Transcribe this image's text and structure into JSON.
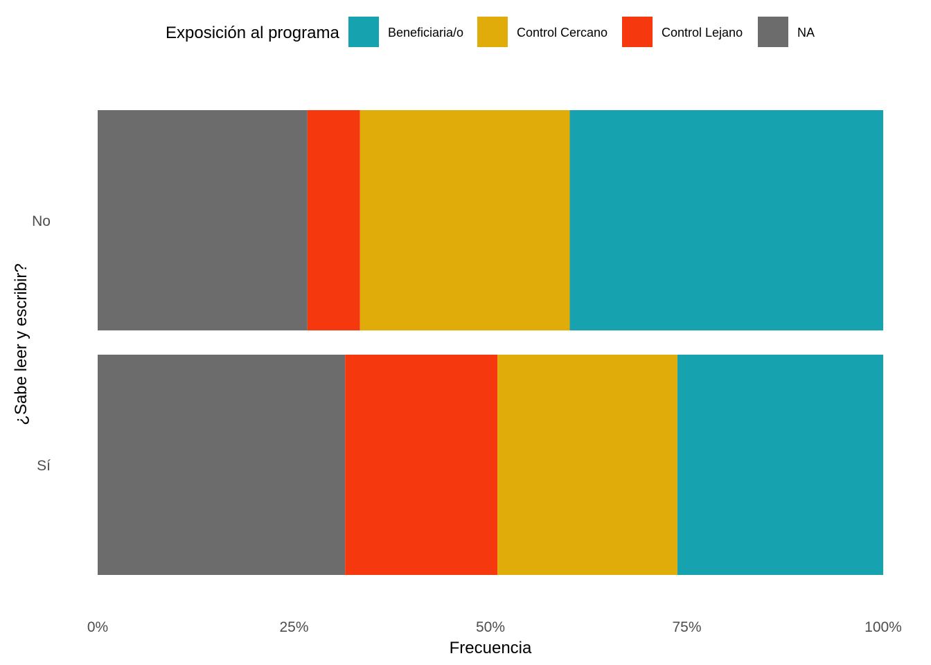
{
  "legend": {
    "title": "Exposición al programa",
    "items": [
      {
        "label": "Beneficiaria/o",
        "color": "#16A2AF"
      },
      {
        "label": "Control Cercano",
        "color": "#E0AC0A"
      },
      {
        "label": "Control Lejano",
        "color": "#F6380E"
      },
      {
        "label": "NA",
        "color": "#6C6C6C"
      }
    ]
  },
  "chart_data": {
    "type": "bar",
    "orientation": "horizontal",
    "stacked": "percent",
    "title": "",
    "xlabel": "Frecuencia",
    "ylabel": "¿Sabe leer y escribir?",
    "categories": [
      "No",
      "Sí"
    ],
    "xlim": [
      0,
      100
    ],
    "x_ticks": [
      "0%",
      "25%",
      "50%",
      "75%",
      "100%"
    ],
    "grid": false,
    "legend_position": "top",
    "stack_order": [
      "NA",
      "Control Lejano",
      "Control Cercano",
      "Beneficiaria/o"
    ],
    "series": [
      {
        "name": "NA",
        "color": "#6C6C6C",
        "values": [
          26.7,
          31.5
        ]
      },
      {
        "name": "Control Lejano",
        "color": "#F6380E",
        "values": [
          6.7,
          19.4
        ]
      },
      {
        "name": "Control Cercano",
        "color": "#E0AC0A",
        "values": [
          26.7,
          22.9
        ]
      },
      {
        "name": "Beneficiaria/o",
        "color": "#16A2AF",
        "values": [
          39.9,
          26.2
        ]
      }
    ]
  }
}
